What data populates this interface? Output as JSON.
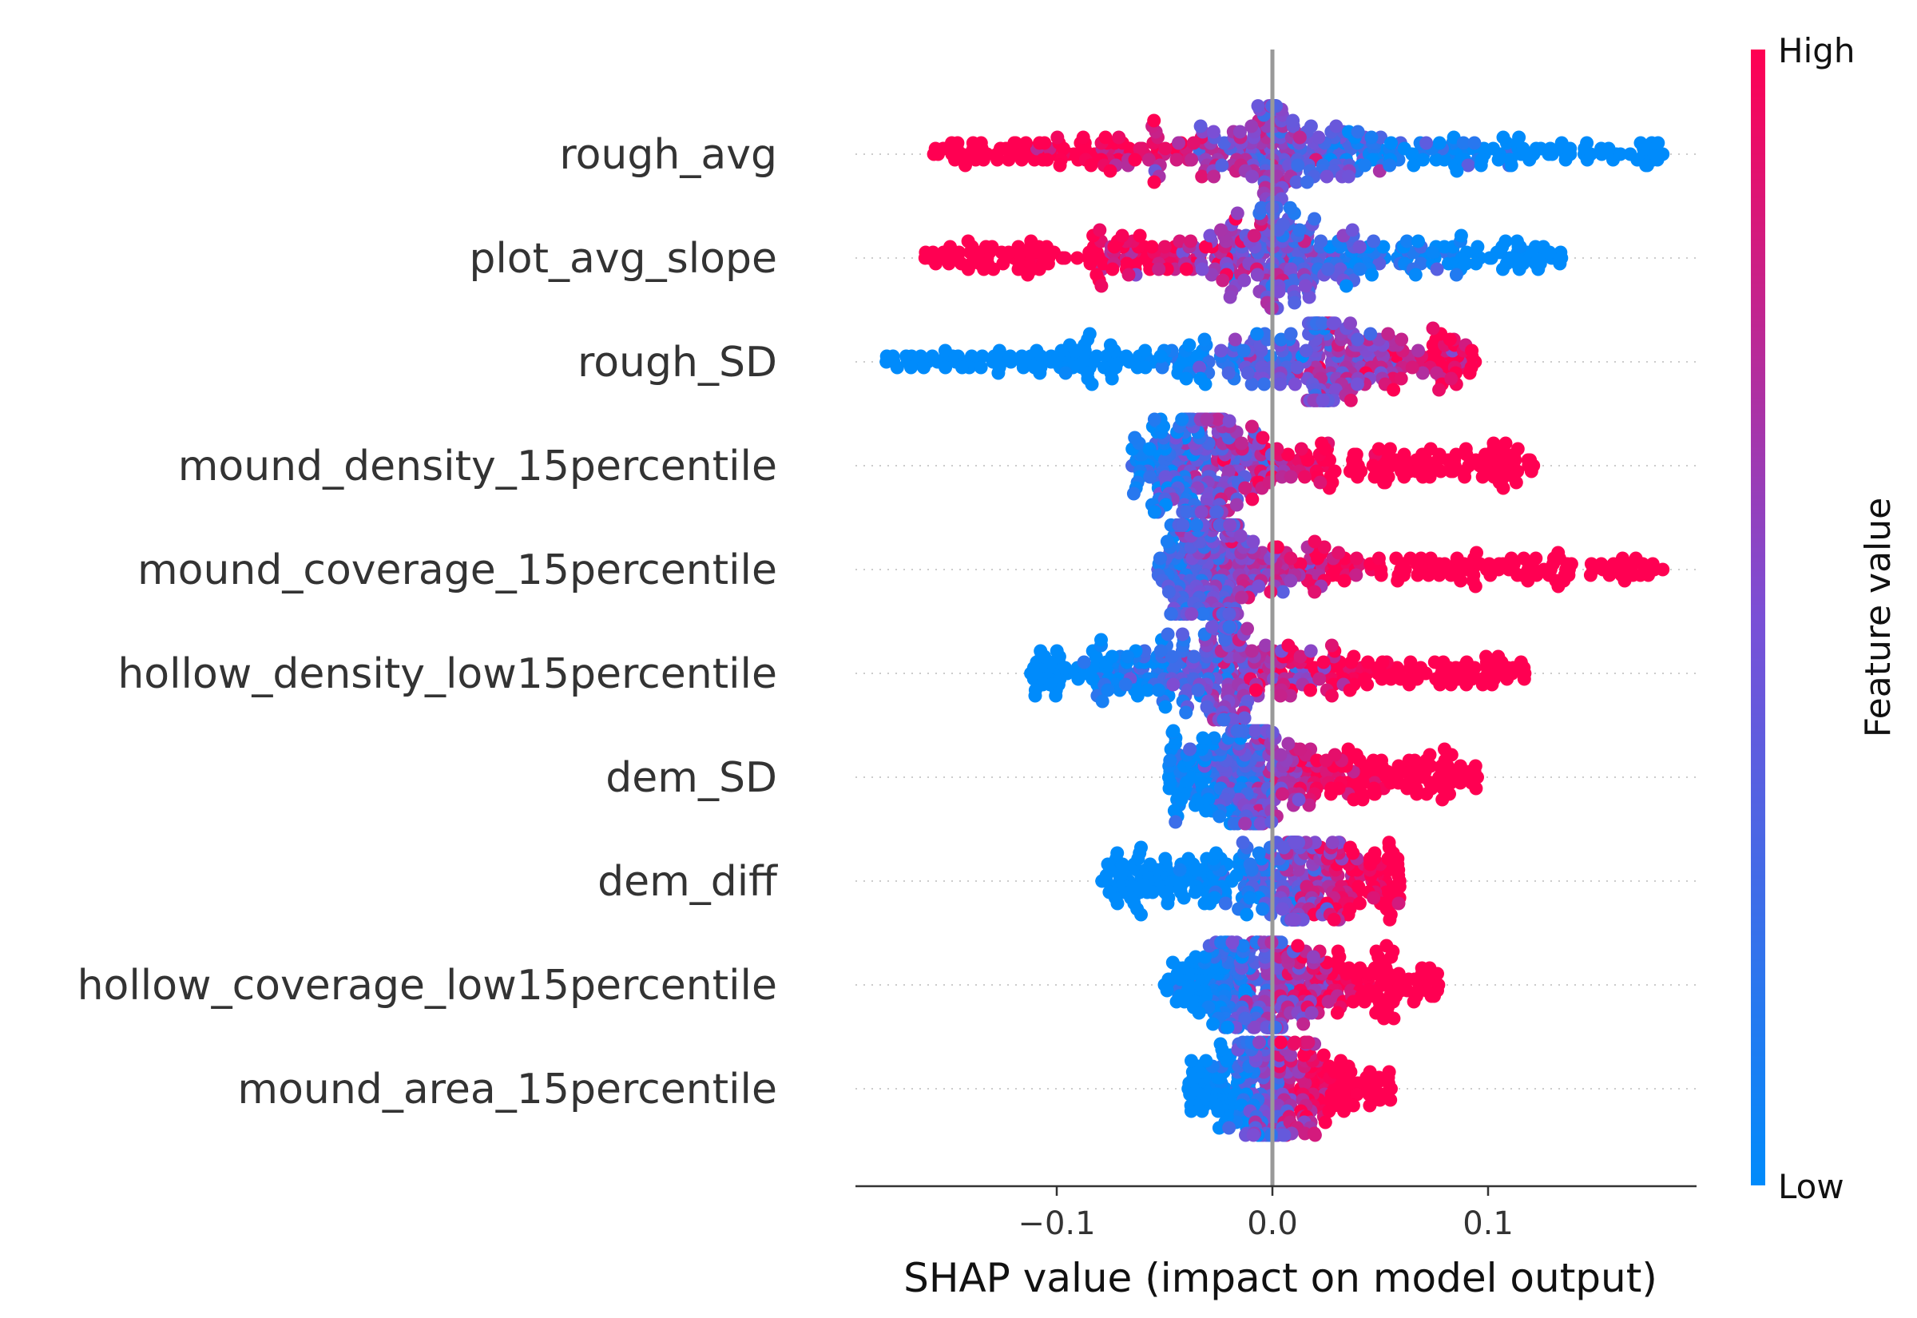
{
  "chart_data": {
    "type": "scatter",
    "subtype": "shap-beeswarm",
    "xlabel": "SHAP value (impact on model output)",
    "ylabel": "",
    "xlim": [
      -0.195,
      0.2
    ],
    "x_ticks": [
      -0.1,
      0.0,
      0.1
    ],
    "x_tick_labels": [
      "−0.1",
      "0.0",
      "0.1"
    ],
    "grid": false,
    "zero_line": true,
    "colors": {
      "low": "#008bfb",
      "high": "#ff0052",
      "zero_line": "#999999",
      "row_guide": "#cccccc",
      "axis": "#333333"
    },
    "colorbar": {
      "title": "Feature value",
      "high_label": "High",
      "low_label": "Low",
      "placement": "right"
    },
    "features": [
      {
        "name": "rough_avg",
        "low": -0.157,
        "high": 0.181,
        "zero": 0.0,
        "trend": -1,
        "spread": 0.25,
        "n": 420
      },
      {
        "name": "plot_avg_slope",
        "low": -0.161,
        "high": 0.134,
        "zero": 0.0,
        "trend": -1,
        "spread": 0.26,
        "n": 420
      },
      {
        "name": "rough_SD",
        "low": -0.179,
        "high": 0.094,
        "zero": 0.02,
        "trend": 1,
        "spread": 0.2,
        "n": 400
      },
      {
        "name": "mound_density_15percentile",
        "low": -0.065,
        "high": 0.121,
        "zero": -0.025,
        "trend": 1,
        "spread": 0.24,
        "n": 400
      },
      {
        "name": "mound_coverage_15percentile",
        "low": -0.053,
        "high": 0.181,
        "zero": -0.02,
        "trend": 1,
        "spread": 0.23,
        "n": 420
      },
      {
        "name": "hollow_density_low15percentile",
        "low": -0.112,
        "high": 0.117,
        "zero": -0.02,
        "trend": 1,
        "spread": 0.24,
        "n": 400
      },
      {
        "name": "dem_SD",
        "low": -0.048,
        "high": 0.095,
        "zero": -0.005,
        "trend": 1,
        "spread": 0.24,
        "n": 380
      },
      {
        "name": "dem_diff",
        "low": -0.079,
        "high": 0.059,
        "zero": 0.01,
        "trend": 1,
        "spread": 0.2,
        "n": 360
      },
      {
        "name": "hollow_coverage_low15percentile",
        "low": -0.05,
        "high": 0.077,
        "zero": 0.0,
        "trend": 1,
        "spread": 0.22,
        "n": 360
      },
      {
        "name": "mound_area_15percentile",
        "low": -0.039,
        "high": 0.055,
        "zero": 0.0,
        "trend": 1,
        "spread": 0.24,
        "n": 340
      }
    ]
  }
}
